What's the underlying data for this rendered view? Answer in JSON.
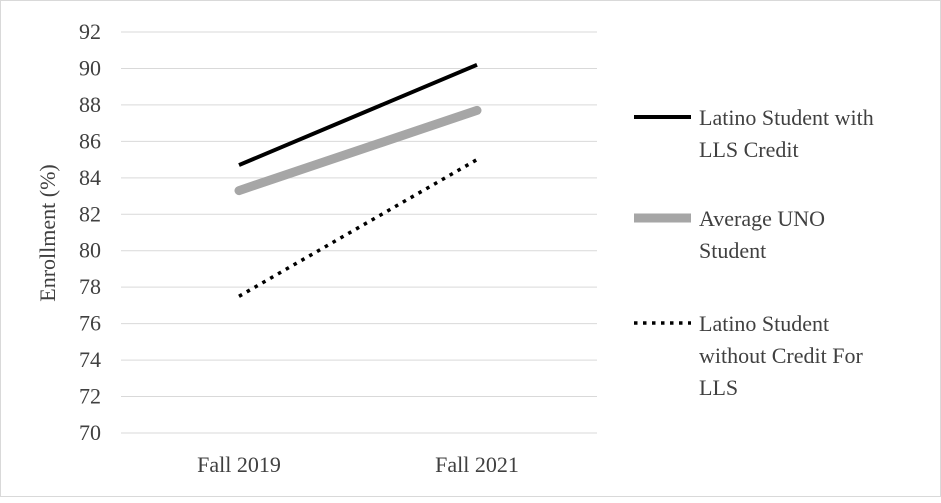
{
  "chart_data": {
    "type": "line",
    "categories": [
      "Fall 2019",
      "Fall 2021"
    ],
    "ylabel": "Enrollment (%)",
    "xlabel": "",
    "ylim": [
      70,
      92
    ],
    "yticks": [
      "70",
      "72",
      "74",
      "76",
      "78",
      "80",
      "82",
      "84",
      "86",
      "88",
      "90",
      "92"
    ],
    "grid": "horizontal",
    "legend_position": "right",
    "series": [
      {
        "name": "Latino Student with LLS Credit",
        "label_lines": [
          "Latino Student with",
          "LLS Credit"
        ],
        "values": [
          84.7,
          90.2
        ],
        "color": "#000000",
        "style": "solid"
      },
      {
        "name": "Average UNO Student",
        "label_lines": [
          "Average UNO",
          "Student"
        ],
        "values": [
          83.3,
          87.7
        ],
        "color": "#a6a6a6",
        "style": "thick"
      },
      {
        "name": "Latino Student without Credit For LLS",
        "label_lines": [
          "Latino Student",
          "without Credit For",
          "LLS"
        ],
        "values": [
          77.5,
          85.0
        ],
        "color": "#000000",
        "style": "dotted"
      }
    ]
  }
}
